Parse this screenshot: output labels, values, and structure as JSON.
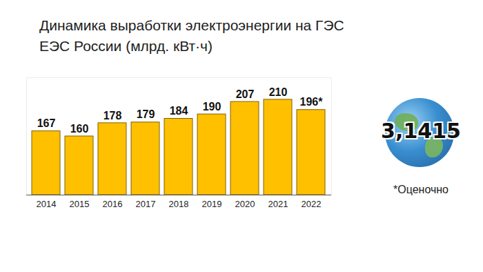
{
  "chart_data": {
    "type": "bar",
    "title": [
      "Динамика выработки электроэнергии на ГЭС",
      "ЕЭС России (млрд. кВт·ч)"
    ],
    "categories": [
      "2014",
      "2015",
      "2016",
      "2017",
      "2018",
      "2019",
      "2020",
      "2021",
      "2022"
    ],
    "values": [
      167,
      160,
      178,
      179,
      184,
      190,
      207,
      210,
      196
    ],
    "value_labels": [
      "167",
      "160",
      "178",
      "179",
      "184",
      "190",
      "207",
      "210",
      "196*"
    ],
    "color": "#ffc000",
    "ylim": [
      80,
      240
    ],
    "yticks": [],
    "grid": false,
    "data_labels": true,
    "tick_labels": "x",
    "note": "*Оценочно",
    "logo": "3,1415"
  }
}
